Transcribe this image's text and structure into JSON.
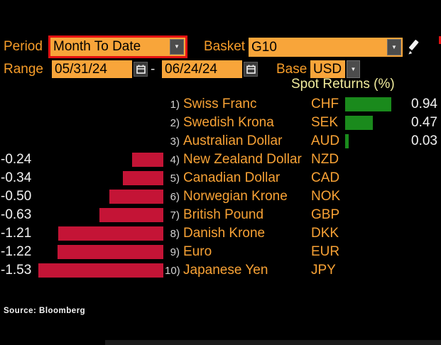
{
  "toolbar": {
    "period": {
      "label": "Period",
      "value": "Month To Date"
    },
    "basket": {
      "label": "Basket",
      "value": "G10"
    },
    "range": {
      "label": "Range",
      "start": "05/31/24",
      "separator": "-",
      "end": "06/24/24"
    },
    "base": {
      "label": "Base",
      "value": "USD"
    }
  },
  "icons": {
    "chevron_char": "▼",
    "period_dropdown": "chevron-down-icon",
    "basket_dropdown": "chevron-down-icon",
    "base_dropdown": "chevron-down-icon",
    "range_pickers": "calendar-icon",
    "basket_edit": "pencil-icon"
  },
  "chart_data": {
    "type": "bar",
    "orientation": "horizontal-diverging",
    "title": "Spot Returns (%)",
    "value_unit": "%",
    "grid": false,
    "legend": "none",
    "positive_color": "#1a8a1c",
    "negative_color": "#c41436",
    "categories": [
      "Swiss Franc",
      "Swedish Krona",
      "Australian Dollar",
      "New Zealand Dollar",
      "Canadian Dollar",
      "Norwegian Krone",
      "British Pound",
      "Danish Krone",
      "Euro",
      "Japanese Yen"
    ],
    "values": [
      0.94,
      0.47,
      0.03,
      -0.24,
      -0.34,
      -0.5,
      -0.63,
      -1.21,
      -1.22,
      -1.53
    ],
    "rows": [
      {
        "rank": "1)",
        "name": "Swiss Franc",
        "code": "CHF",
        "value": 0.94,
        "display": "0.94"
      },
      {
        "rank": "2)",
        "name": "Swedish Krona",
        "code": "SEK",
        "value": 0.47,
        "display": "0.47"
      },
      {
        "rank": "3)",
        "name": "Australian Dollar",
        "code": "AUD",
        "value": 0.03,
        "display": "0.03"
      },
      {
        "rank": "4)",
        "name": "New Zealand Dollar",
        "code": "NZD",
        "value": -0.24,
        "display": "-0.24"
      },
      {
        "rank": "5)",
        "name": "Canadian Dollar",
        "code": "CAD",
        "value": -0.34,
        "display": "-0.34"
      },
      {
        "rank": "6)",
        "name": "Norwegian Krone",
        "code": "NOK",
        "value": -0.5,
        "display": "-0.50"
      },
      {
        "rank": "7)",
        "name": "British Pound",
        "code": "GBP",
        "value": -0.63,
        "display": "-0.63"
      },
      {
        "rank": "8)",
        "name": "Danish Krone",
        "code": "DKK",
        "value": -1.21,
        "display": "-1.21"
      },
      {
        "rank": "9)",
        "name": "Euro",
        "code": "EUR",
        "value": -1.22,
        "display": "-1.22"
      },
      {
        "rank": "10)",
        "name": "Japanese Yen",
        "code": "JPY",
        "value": -1.53,
        "display": "-1.53"
      }
    ]
  },
  "source": "Source: Bloomberg"
}
